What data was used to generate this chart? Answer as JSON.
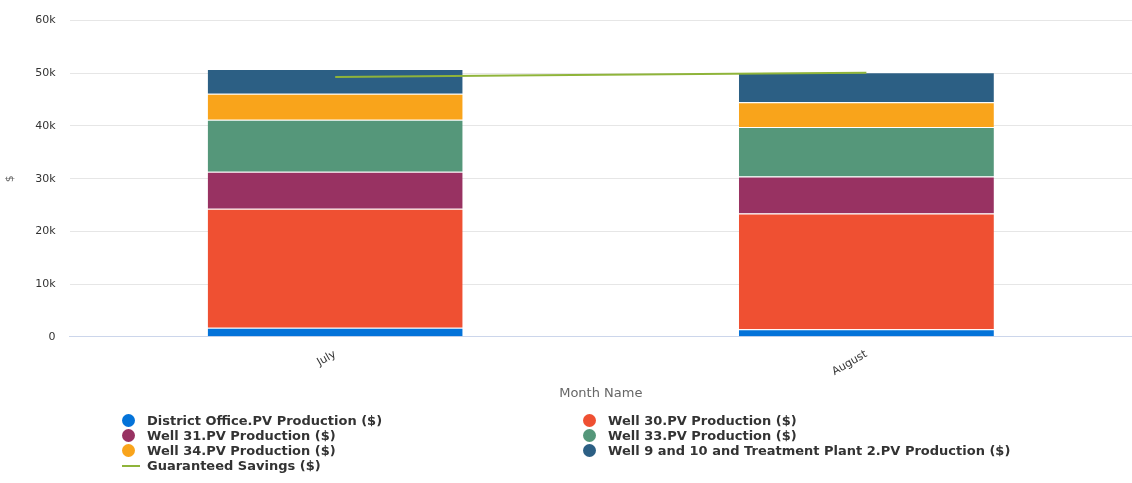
{
  "chart_data": {
    "type": "bar",
    "stacked": true,
    "xlabel": "Month Name",
    "ylabel": "$",
    "categories": [
      "July",
      "August"
    ],
    "series": [
      {
        "name": "District Office.PV Production ($)",
        "color": "#0473d9",
        "values": [
          1.7,
          1.4
        ]
      },
      {
        "name": "Well 30.PV Production ($)",
        "color": "#ef5032",
        "values": [
          22.6,
          22.0
        ]
      },
      {
        "name": "Well 31.PV Production ($)",
        "color": "#983262",
        "values": [
          7.0,
          7.0
        ]
      },
      {
        "name": "Well 33.PV Production ($)",
        "color": "#55977a",
        "values": [
          9.9,
          9.4
        ]
      },
      {
        "name": "Well 34.PV Production ($)",
        "color": "#f9a41b",
        "values": [
          4.9,
          4.7
        ]
      },
      {
        "name": "Well 9 and 10 and Treatment Plant 2.PV Production ($)",
        "color": "#2c5f84",
        "values": [
          4.7,
          5.7
        ]
      },
      {
        "name": "Guaranteed Savings ($)",
        "type": "line",
        "color": "#8fb43a",
        "values": [
          49.3,
          50.1
        ],
        "marker": "none"
      }
    ],
    "ylim": [
      0,
      60
    ],
    "yticks": [
      {
        "value": 0,
        "label": "0"
      },
      {
        "value": 10,
        "label": "10k"
      },
      {
        "value": 20,
        "label": "20k"
      },
      {
        "value": 30,
        "label": "30k"
      },
      {
        "value": 40,
        "label": "40k"
      },
      {
        "value": 50,
        "label": "50k"
      },
      {
        "value": 60,
        "label": "60k"
      }
    ],
    "grid": "y",
    "legend": "bottom"
  }
}
